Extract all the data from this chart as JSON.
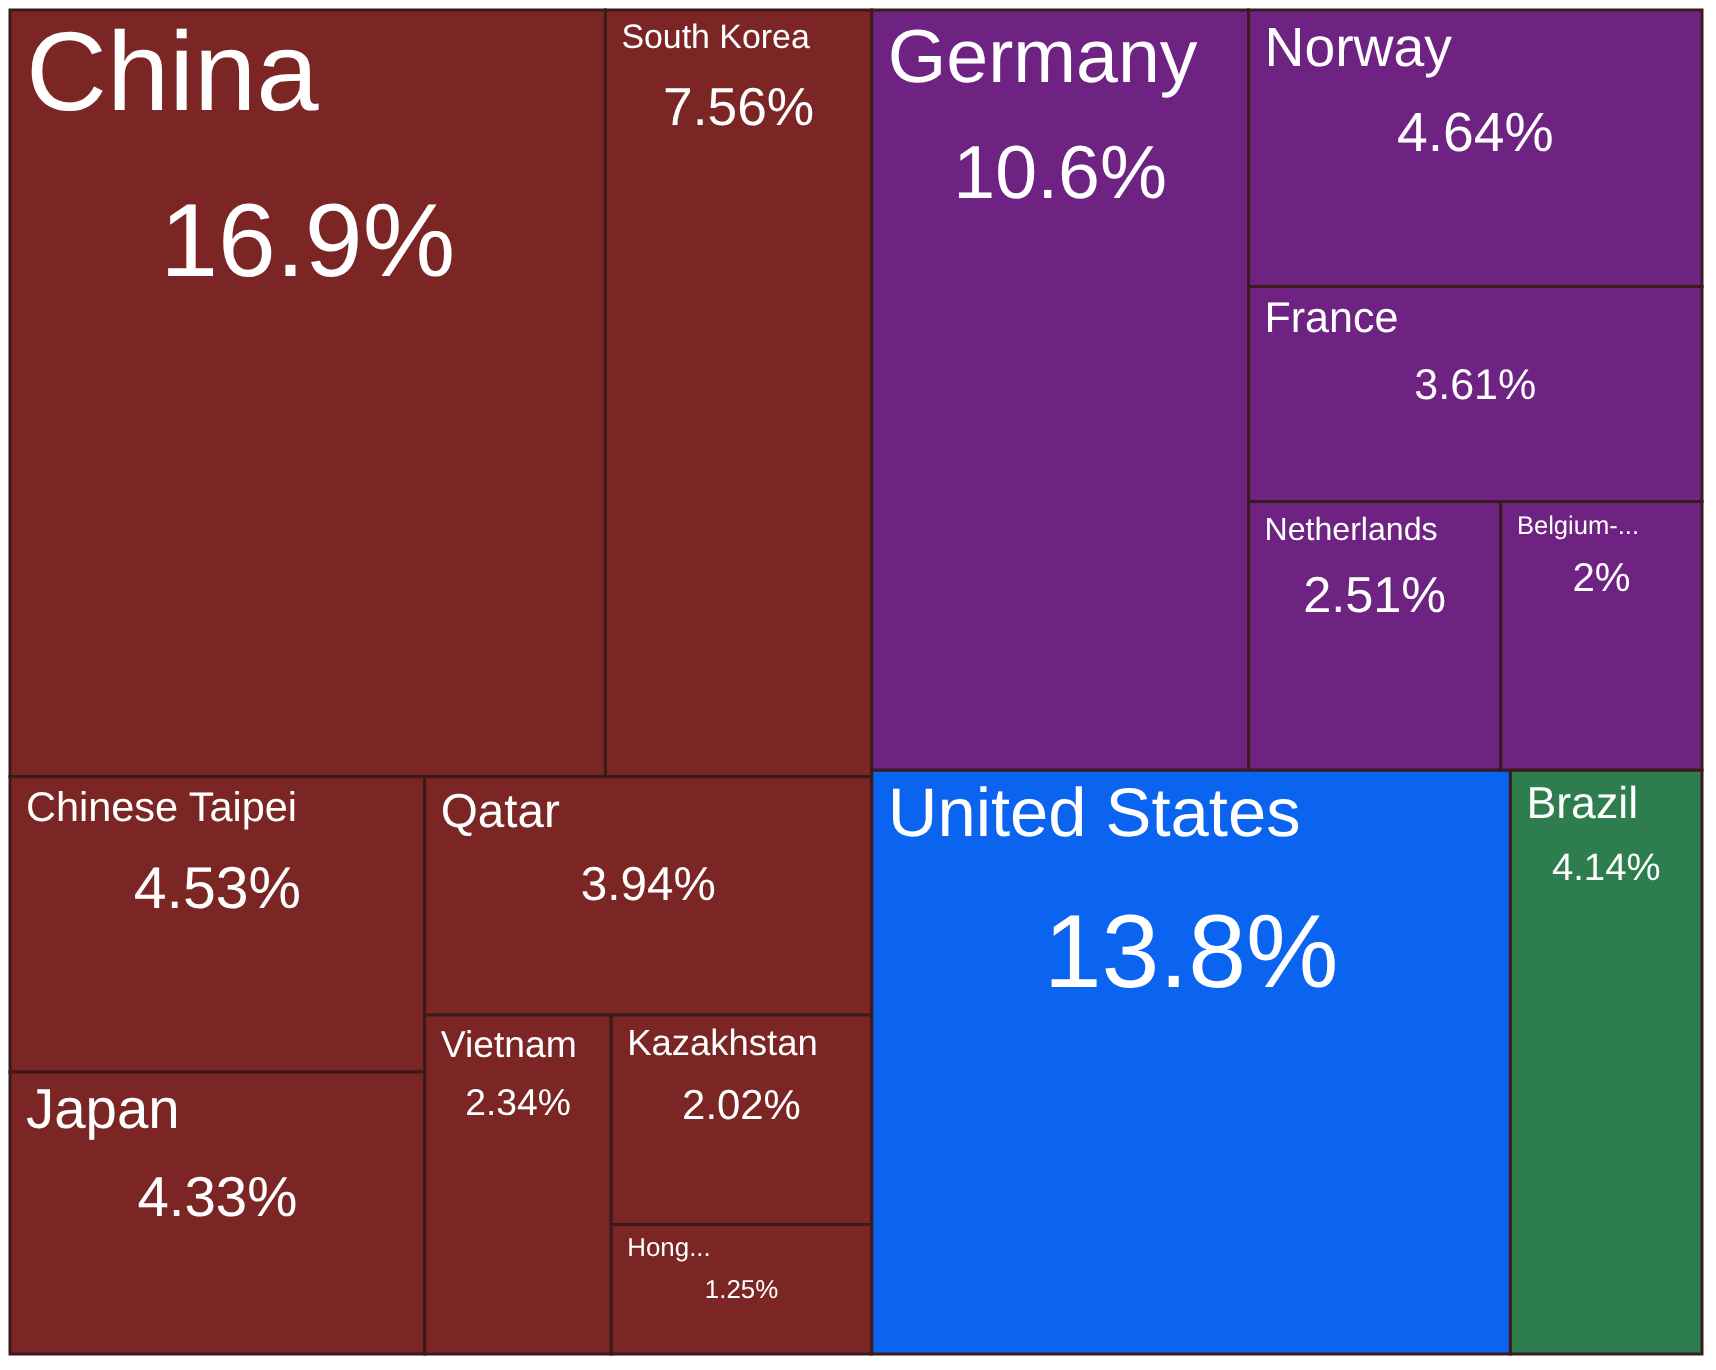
{
  "chart_data": {
    "type": "other",
    "categories": [
      "China",
      "South Korea",
      "Chinese Taipei",
      "Japan",
      "Qatar",
      "Vietnam",
      "Kazakhstan",
      "Hong...",
      "Germany",
      "Norway",
      "France",
      "Netherlands",
      "Belgium-...",
      "United States",
      "Brazil"
    ],
    "series": [
      {
        "color": "#7b2525",
        "values": [
          16.9,
          7.56,
          4.53,
          4.33,
          3.94,
          2.34,
          2.02,
          1.25,
          null,
          null,
          null,
          null,
          null,
          null,
          null
        ],
        "value_labels": [
          "16.9%",
          "7.56%",
          "4.53%",
          "4.33%",
          "3.94%",
          "2.34%",
          "2.02%",
          "1.25%",
          null,
          null,
          null,
          null,
          null,
          null,
          null
        ]
      },
      {
        "color": "#6e2382",
        "values": [
          null,
          null,
          null,
          null,
          null,
          null,
          null,
          null,
          10.6,
          4.64,
          3.61,
          2.51,
          2,
          null,
          null
        ],
        "value_labels": [
          null,
          null,
          null,
          null,
          null,
          null,
          null,
          null,
          "10.6%",
          "4.64%",
          "3.61%",
          "2.51%",
          "2%",
          null,
          null
        ]
      },
      {
        "color": "#0a64f0",
        "values": [
          null,
          null,
          null,
          null,
          null,
          null,
          null,
          null,
          null,
          null,
          null,
          null,
          null,
          13.8,
          null
        ],
        "value_labels": [
          null,
          null,
          null,
          null,
          null,
          null,
          null,
          null,
          null,
          null,
          null,
          null,
          null,
          "13.8%",
          null
        ]
      },
      {
        "color": "#2e7d4f",
        "values": [
          null,
          null,
          null,
          null,
          null,
          null,
          null,
          null,
          null,
          null,
          null,
          null,
          null,
          null,
          4.14
        ],
        "value_labels": [
          null,
          null,
          null,
          null,
          null,
          null,
          null,
          null,
          null,
          null,
          null,
          null,
          null,
          null,
          "4.14%"
        ]
      }
    ]
  }
}
